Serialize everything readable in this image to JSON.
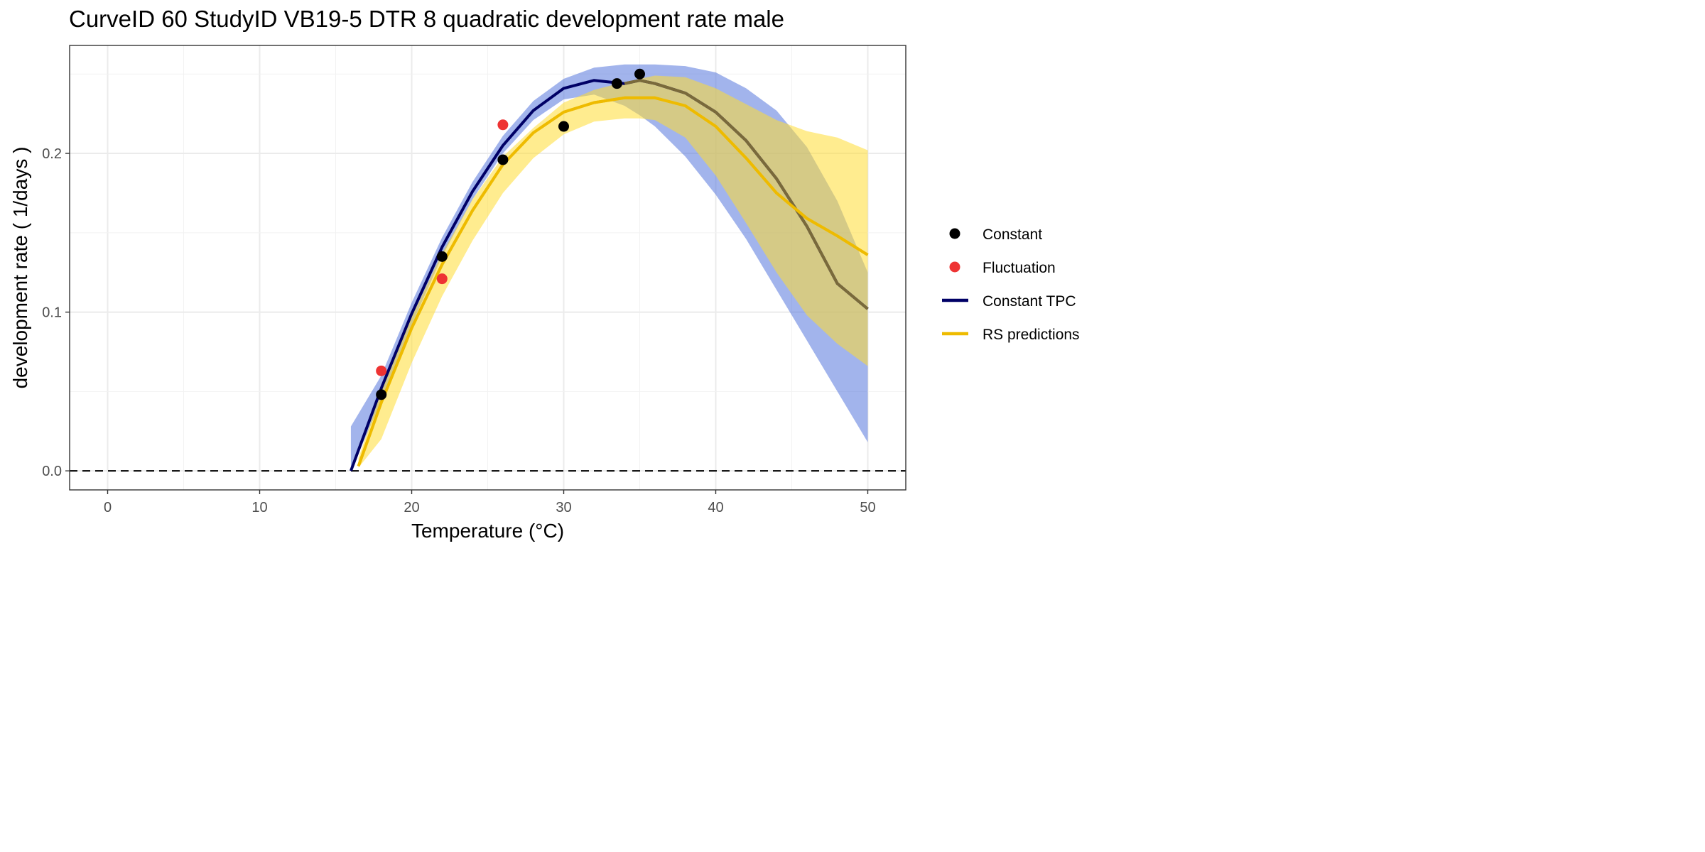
{
  "chart_data": {
    "type": "line",
    "title": "CurveID 60 StudyID VB19-5 DTR 8 quadratic development rate male",
    "xlabel": "Temperature (°C)",
    "ylabel": "development rate ( 1/days )",
    "xlim": [
      -2.5,
      52.5
    ],
    "ylim": [
      -0.012,
      0.268
    ],
    "x_ticks": [
      0,
      10,
      20,
      30,
      40,
      50
    ],
    "x_tick_labels": [
      "0",
      "10",
      "20",
      "30",
      "40",
      "50"
    ],
    "y_ticks": [
      0.0,
      0.1,
      0.2
    ],
    "y_tick_labels": [
      "0.0",
      "0.1",
      "0.2"
    ],
    "grid": true,
    "reference_line": {
      "y": 0.0,
      "style": "dashed"
    },
    "legend_position": "right",
    "series": [
      {
        "name": "Constant",
        "kind": "points",
        "color": "#000000",
        "x": [
          18,
          22,
          26,
          30,
          33.5,
          35
        ],
        "y": [
          0.048,
          0.135,
          0.196,
          0.217,
          0.244,
          0.25
        ]
      },
      {
        "name": "Fluctuation",
        "kind": "points",
        "color": "#ee3333",
        "x": [
          18,
          22,
          26
        ],
        "y": [
          0.063,
          0.121,
          0.218
        ]
      },
      {
        "name": "Constant TPC",
        "kind": "line",
        "color": "#000066",
        "x": [
          16,
          18,
          20,
          22,
          24,
          26,
          28,
          30,
          32,
          34,
          35,
          36,
          38,
          40,
          42,
          44,
          46,
          48,
          50
        ],
        "y": [
          0.0,
          0.052,
          0.099,
          0.141,
          0.176,
          0.205,
          0.227,
          0.241,
          0.246,
          0.244,
          0.246,
          0.244,
          0.238,
          0.226,
          0.208,
          0.184,
          0.154,
          0.118,
          0.102
        ],
        "band_color": "#5577dd",
        "band_upper": [
          0.028,
          0.06,
          0.106,
          0.147,
          0.182,
          0.211,
          0.233,
          0.247,
          0.254,
          0.256,
          0.256,
          0.256,
          0.255,
          0.251,
          0.241,
          0.227,
          0.204,
          0.17,
          0.125
        ],
        "band_lower": [
          0.0,
          0.044,
          0.092,
          0.135,
          0.171,
          0.2,
          0.221,
          0.234,
          0.237,
          0.23,
          0.224,
          0.217,
          0.198,
          0.174,
          0.146,
          0.114,
          0.082,
          0.05,
          0.018
        ]
      },
      {
        "name": "RS predictions",
        "kind": "line",
        "color": "#eebb00",
        "x": [
          16.5,
          18,
          20,
          22,
          24,
          26,
          28,
          30,
          32,
          34,
          35,
          36,
          38,
          40,
          42,
          44,
          46,
          48,
          50
        ],
        "y": [
          0.003,
          0.043,
          0.09,
          0.13,
          0.164,
          0.193,
          0.213,
          0.226,
          0.232,
          0.235,
          0.235,
          0.235,
          0.23,
          0.217,
          0.197,
          0.175,
          0.159,
          0.148,
          0.136
        ],
        "band_color": "#ffdd33",
        "band_upper": [
          0.008,
          0.05,
          0.097,
          0.137,
          0.171,
          0.198,
          0.216,
          0.232,
          0.24,
          0.245,
          0.247,
          0.249,
          0.248,
          0.241,
          0.231,
          0.221,
          0.214,
          0.21,
          0.202
        ],
        "band_lower": [
          0.002,
          0.02,
          0.068,
          0.11,
          0.145,
          0.175,
          0.197,
          0.212,
          0.22,
          0.222,
          0.222,
          0.221,
          0.21,
          0.186,
          0.156,
          0.125,
          0.098,
          0.08,
          0.066
        ]
      }
    ]
  }
}
